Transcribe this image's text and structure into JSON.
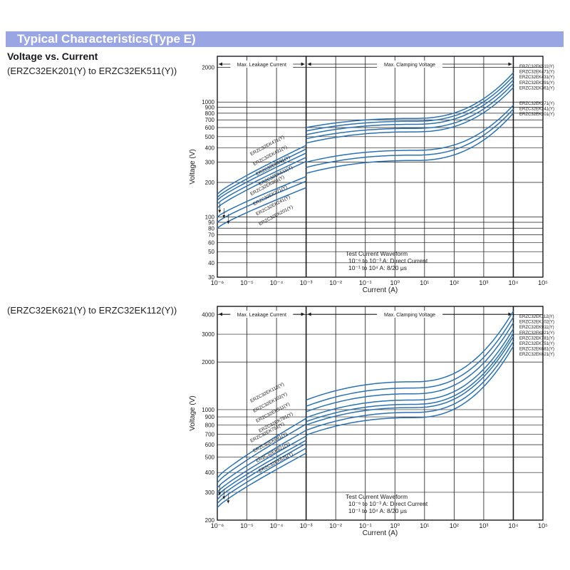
{
  "page": {
    "banner_title": "Typical Characteristics(Type E)",
    "heading": "Voltage vs. Current"
  },
  "colors": {
    "banner": "#9aa6e4",
    "curve": "#2a72b4",
    "axis": "#1a1a1a"
  },
  "chart_data": [
    {
      "type": "line",
      "subtitle": "(ERZC32EK201(Y) to ERZC32EK511(Y))",
      "xlabel": "Current (A)",
      "ylabel": "Voltage (V)",
      "x_scale": "log",
      "y_scale": "log",
      "xlim": [
        1e-06,
        100000.0
      ],
      "ylim": [
        30,
        2500
      ],
      "x_ticks": [
        "10⁻⁶",
        "10⁻⁵",
        "10⁻⁴",
        "10⁻³",
        "10⁻²",
        "10⁻¹",
        "10⁰",
        "10¹",
        "10²",
        "10³",
        "10⁴",
        "10⁵"
      ],
      "y_ticks": [
        30,
        40,
        50,
        60,
        70,
        80,
        90,
        100,
        200,
        300,
        400,
        500,
        600,
        700,
        800,
        900,
        1000,
        2000
      ],
      "grid": true,
      "regions": [
        {
          "label": "Max. Leakage Current",
          "x_range": [
            1e-06,
            0.001
          ]
        },
        {
          "label": "Max. Clamping Voltage",
          "x_range": [
            0.001,
            10000.0
          ]
        }
      ],
      "note": [
        "Test Current Waveform",
        "10⁻⁶ to 10⁻³ A: Direct Current",
        "10⁻¹ to 10⁴ A:  8/20 μs"
      ],
      "series": [
        {
          "name": "ERZC32EK511(Y)",
          "leak_start": 158,
          "leak_end": 420,
          "clamp_start": 600,
          "clamp_mid": 720,
          "clamp_end": 1800
        },
        {
          "name": "ERZC32EK471(Y)",
          "leak_start": 148,
          "leak_end": 390,
          "clamp_start": 560,
          "clamp_mid": 680,
          "clamp_end": 1680
        },
        {
          "name": "ERZC32EK431(Y)",
          "leak_start": 140,
          "leak_end": 360,
          "clamp_start": 520,
          "clamp_mid": 640,
          "clamp_end": 1560
        },
        {
          "name": "ERZC32EK391(Y)",
          "leak_start": 130,
          "leak_end": 330,
          "clamp_start": 480,
          "clamp_mid": 590,
          "clamp_end": 1450
        },
        {
          "name": "ERZC32EK361(Y)",
          "leak_start": 120,
          "leak_end": 305,
          "clamp_start": 440,
          "clamp_mid": 550,
          "clamp_end": 1340
        },
        {
          "name": "ERZC32EK271(Y)",
          "leak_start": 100,
          "leak_end": 225,
          "clamp_start": 300,
          "clamp_mid": 380,
          "clamp_end": 940
        },
        {
          "name": "ERZC32EK241(Y)",
          "leak_start": 90,
          "leak_end": 205,
          "clamp_start": 270,
          "clamp_mid": 345,
          "clamp_end": 870
        },
        {
          "name": "ERZC32EK201(Y)",
          "leak_start": 80,
          "leak_end": 180,
          "clamp_start": 240,
          "clamp_mid": 310,
          "clamp_end": 800
        }
      ],
      "leak_labels": [
        "ERZC32EK471(Y)",
        "ERZC32EK431(Y)",
        "ERZC32EK391(Y)",
        "ERZC32EK511(Y)",
        "ERZC32EK361(Y)",
        "ERZC32EK271(Y)",
        "ERZC32EK241(Y)",
        "ERZC32EK201(Y)"
      ]
    },
    {
      "type": "line",
      "subtitle": "(ERZC32EK621(Y) to ERZC32EK112(Y))",
      "xlabel": "Current (A)",
      "ylabel": "Voltage (V)",
      "x_scale": "log",
      "y_scale": "log",
      "xlim": [
        1e-06,
        100000.0
      ],
      "ylim": [
        200,
        4500
      ],
      "x_ticks": [
        "10⁻⁶",
        "10⁻⁵",
        "10⁻⁴",
        "10⁻³",
        "10⁻²",
        "10⁻¹",
        "10⁰",
        "10¹",
        "10²",
        "10³",
        "10⁴",
        "10⁵"
      ],
      "y_ticks": [
        200,
        300,
        400,
        500,
        600,
        700,
        800,
        900,
        1000,
        2000,
        3000,
        4000
      ],
      "grid": true,
      "regions": [
        {
          "label": "Max. Leakage Current",
          "x_range": [
            1e-06,
            0.001
          ]
        },
        {
          "label": "Max. Clamping Voltage",
          "x_range": [
            0.001,
            10000.0
          ]
        }
      ],
      "note": [
        "Test Current Waveform",
        "10⁻⁶ to 10⁻³ A: Direct Current",
        "10⁻¹ to 10⁴ A:  8/20 μs"
      ],
      "series": [
        {
          "name": "ERZC32EK112(Y)",
          "leak_start": 370,
          "leak_end": 880,
          "clamp_start": 1150,
          "clamp_mid": 1500,
          "clamp_end": 4200
        },
        {
          "name": "ERZC32EK102(Y)",
          "leak_start": 345,
          "leak_end": 810,
          "clamp_start": 1050,
          "clamp_mid": 1370,
          "clamp_end": 3850
        },
        {
          "name": "ERZC32EK911(Y)",
          "leak_start": 320,
          "leak_end": 740,
          "clamp_start": 970,
          "clamp_mid": 1260,
          "clamp_end": 3550
        },
        {
          "name": "ERZC32EK821(Y)",
          "leak_start": 300,
          "leak_end": 680,
          "clamp_start": 890,
          "clamp_mid": 1150,
          "clamp_end": 3250
        },
        {
          "name": "ERZC32EK781(Y)",
          "leak_start": 285,
          "leak_end": 640,
          "clamp_start": 840,
          "clamp_mid": 1080,
          "clamp_end": 3050
        },
        {
          "name": "ERZC32EK751(Y)",
          "leak_start": 270,
          "leak_end": 610,
          "clamp_start": 800,
          "clamp_mid": 1030,
          "clamp_end": 2900
        },
        {
          "name": "ERZC32EK681(Y)",
          "leak_start": 255,
          "leak_end": 570,
          "clamp_start": 740,
          "clamp_mid": 960,
          "clamp_end": 2700
        },
        {
          "name": "ERZC32EK621(Y)",
          "leak_start": 240,
          "leak_end": 530,
          "clamp_start": 690,
          "clamp_mid": 890,
          "clamp_end": 2520
        }
      ],
      "leak_labels": [
        "ERZC32EK112(Y)",
        "ERZC32EK102(Y)",
        "ERZC32EK911(Y)",
        "ERZC32EK781(Y)",
        "ERZC32EK751(Y)",
        "ERZC32EK681(Y)",
        "ERZC32EK821(Y)",
        "ERZC32EK621(Y)"
      ]
    }
  ]
}
